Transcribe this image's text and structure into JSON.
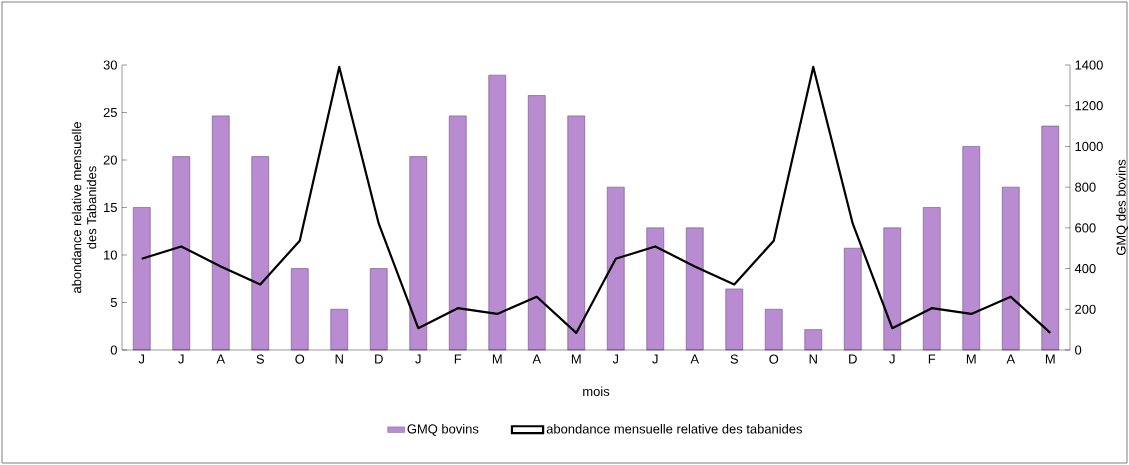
{
  "chart_data": {
    "type": "bar",
    "xlabel": "mois",
    "ylabel": "abondance relative mensuelle des Tabanides",
    "y2label": "GMQ des bovins",
    "categories": [
      "J",
      "J",
      "A",
      "S",
      "O",
      "N",
      "D",
      "J",
      "F",
      "M",
      "A",
      "M",
      "J",
      "J",
      "A",
      "S",
      "O",
      "N",
      "D",
      "J",
      "F",
      "M",
      "A",
      "M"
    ],
    "series": [
      {
        "name": "GMQ bovins",
        "axis": "y2",
        "color": "#b98bd0",
        "values": [
          700,
          950,
          1150,
          950,
          400,
          200,
          400,
          950,
          1150,
          1350,
          1250,
          1150,
          800,
          600,
          600,
          300,
          200,
          100,
          500,
          600,
          700,
          1000,
          800,
          1100
        ]
      },
      {
        "name": "abondance mensuelle relative des tabanides",
        "type": "line",
        "color": "#000000",
        "values": [
          9.6,
          10.9,
          8.8,
          6.9,
          11.5,
          29.8,
          13.3,
          2.3,
          4.4,
          3.8,
          5.6,
          1.8,
          9.6,
          10.9,
          8.8,
          6.9,
          11.5,
          29.8,
          13.3,
          2.3,
          4.4,
          3.8,
          5.6,
          1.8
        ]
      }
    ],
    "ylim": [
      0,
      30
    ],
    "yticks": [
      0,
      5,
      10,
      15,
      20,
      25,
      30
    ],
    "y2lim": [
      0,
      1400
    ],
    "y2ticks": [
      0,
      200,
      400,
      600,
      800,
      1000,
      1200,
      1400
    ],
    "legend": "bottom",
    "grid": false
  }
}
